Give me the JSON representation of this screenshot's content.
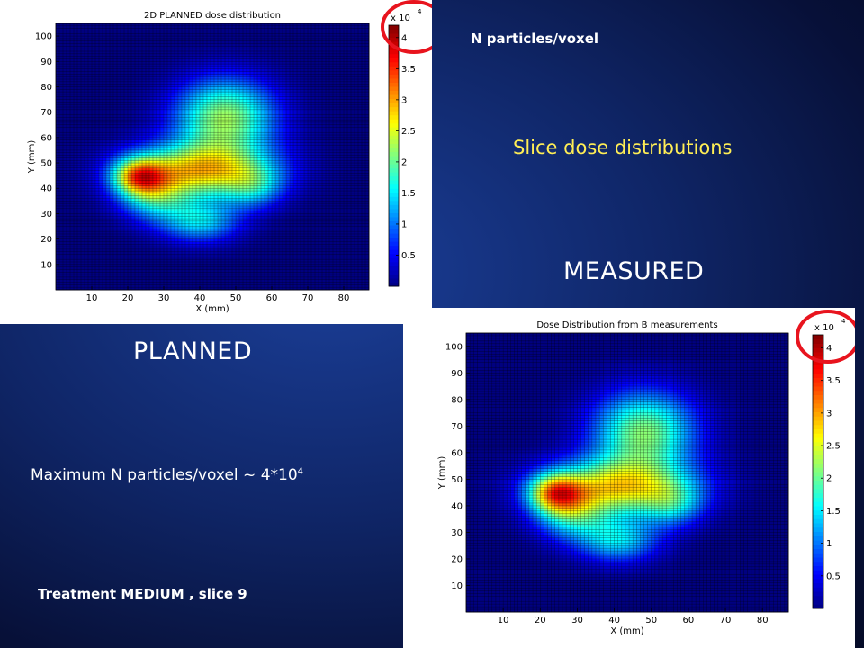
{
  "slide": {
    "title": "Slice dose distributions",
    "colorbar_quantity": "N particles/voxel",
    "measured_label": "MEASURED",
    "planned_label": "PLANNED",
    "maximum_text": "Maximum N particles/voxel ~ 4*10",
    "maximum_exponent": "4",
    "treatment": "Treatment MEDIUM , slice 9"
  },
  "chart_data": [
    {
      "type": "heatmap",
      "title": "2D PLANNED dose distribution",
      "xlabel": "X (mm)",
      "ylabel": "Y (mm)",
      "xlim": [
        0,
        87
      ],
      "ylim": [
        0,
        105
      ],
      "xticks": [
        10,
        20,
        30,
        40,
        50,
        60,
        70,
        80
      ],
      "yticks": [
        10,
        20,
        30,
        40,
        50,
        60,
        70,
        80,
        90,
        100
      ],
      "colorbar": {
        "min": 0,
        "max": 4.2,
        "ticks": [
          0.5,
          1,
          1.5,
          2,
          2.5,
          3,
          3.5,
          4
        ],
        "multiplier": "x 10",
        "multiplier_exponent": "4"
      },
      "grid": true,
      "peak": {
        "x": 23,
        "y": 45,
        "value": 4.2
      }
    },
    {
      "type": "heatmap",
      "title": "Dose Distribution from B measurements",
      "xlabel": "X (mm)",
      "ylabel": "Y (mm)",
      "xlim": [
        0,
        87
      ],
      "ylim": [
        0,
        105
      ],
      "xticks": [
        10,
        20,
        30,
        40,
        50,
        60,
        70,
        80
      ],
      "yticks": [
        10,
        20,
        30,
        40,
        50,
        60,
        70,
        80,
        90,
        100
      ],
      "colorbar": {
        "min": 0,
        "max": 4.2,
        "ticks": [
          0.5,
          1,
          1.5,
          2,
          2.5,
          3,
          3.5,
          4
        ],
        "multiplier": "x 10",
        "multiplier_exponent": "4"
      },
      "grid": true,
      "peak": {
        "x": 24,
        "y": 45,
        "value": 4.2
      }
    }
  ],
  "colors": {
    "highlight_circle": "#e8141e",
    "title_text": "#ffee55",
    "white_text": "#ffffff"
  }
}
